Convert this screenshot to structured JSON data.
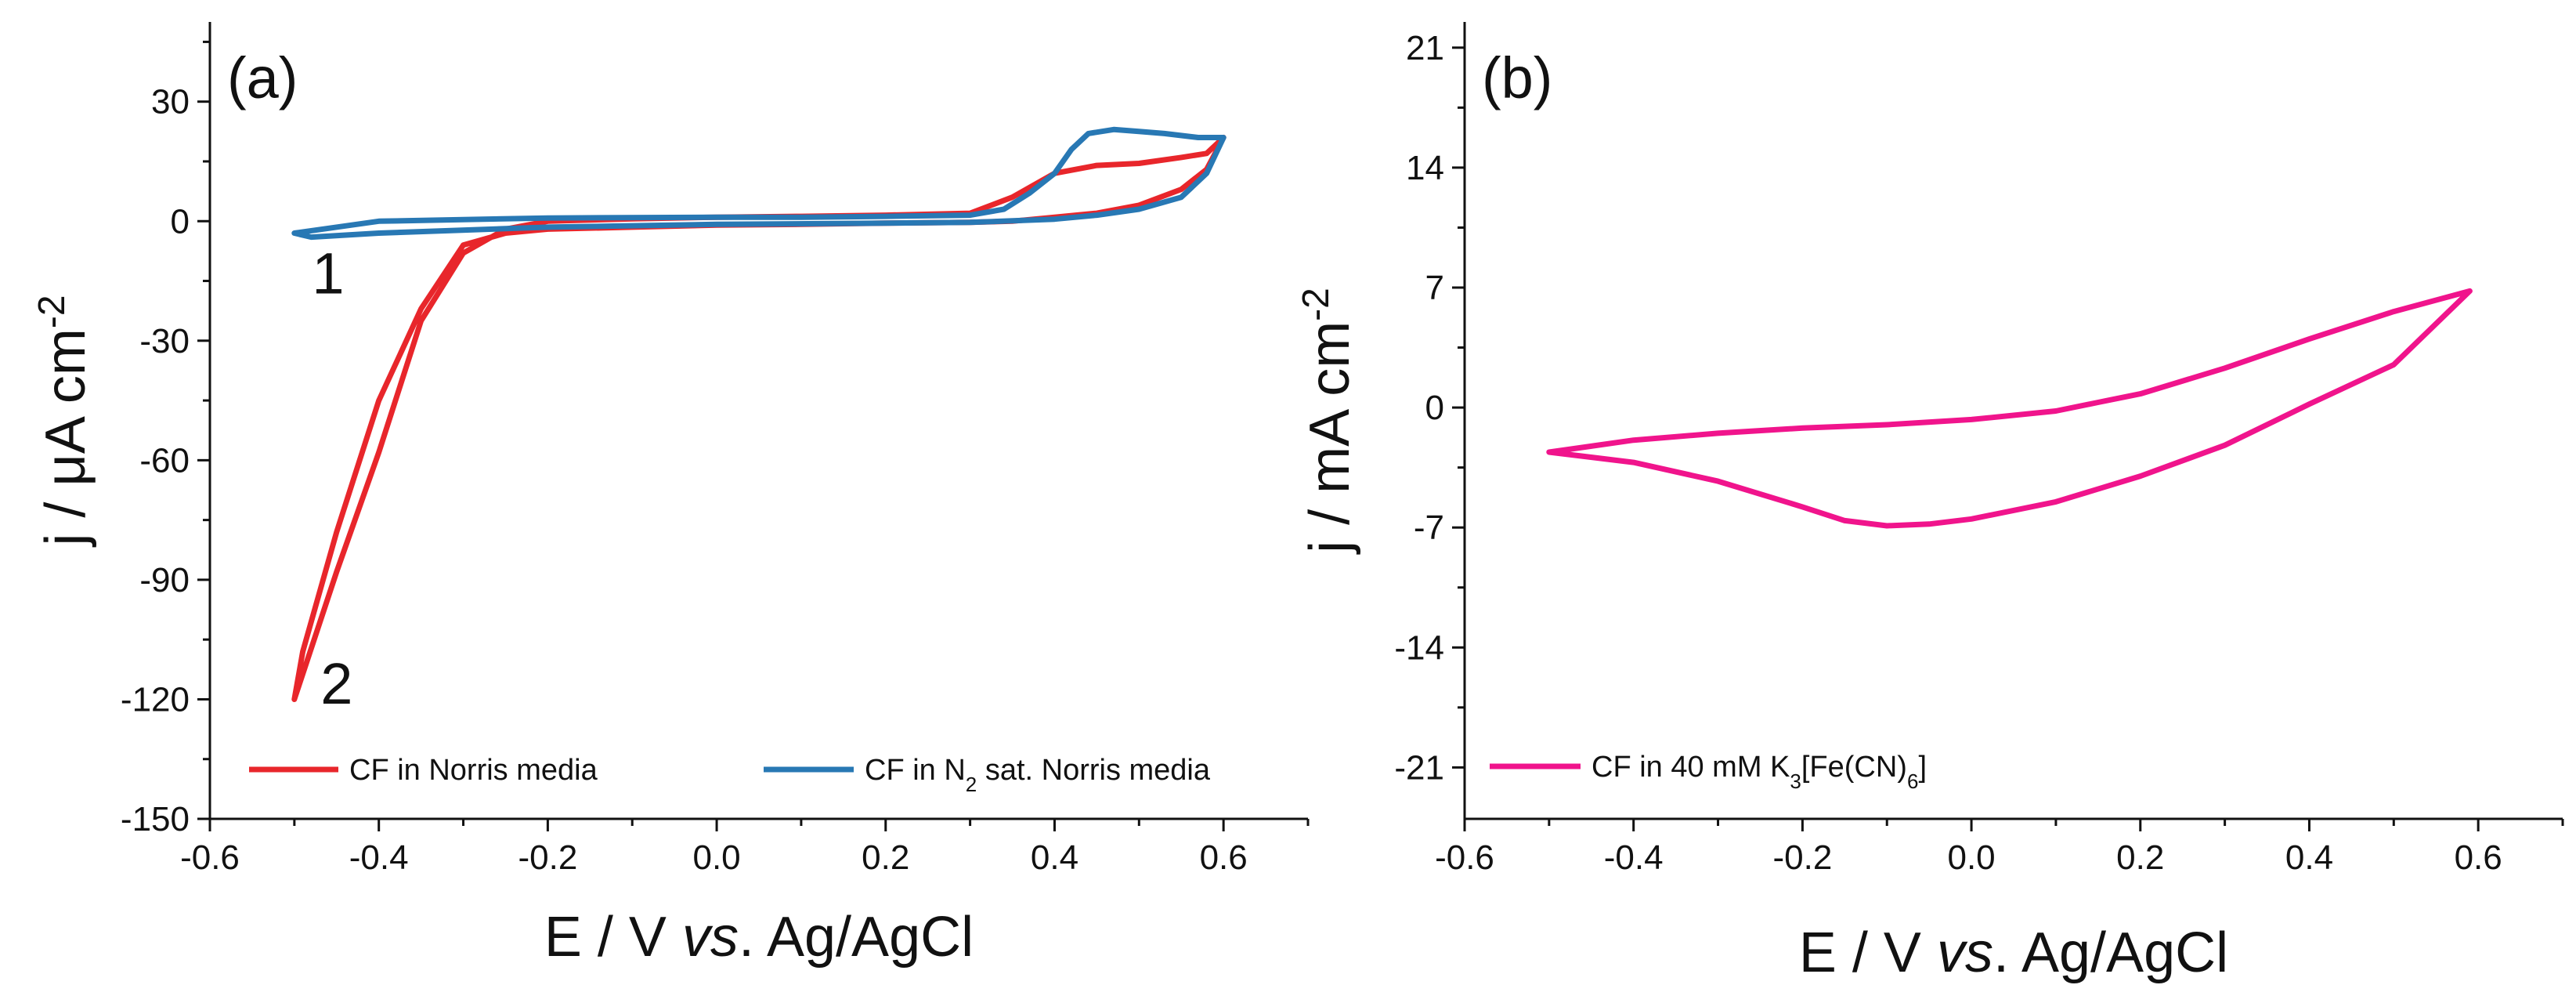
{
  "chart_data": [
    {
      "type": "line",
      "panel_label": "(a)",
      "xlabel": "E / V vs. Ag/AgCl",
      "xlabel_parts": {
        "pre": "E / V ",
        "italic": "vs",
        "post": ". Ag/AgCl"
      },
      "ylabel": "j / μA cm-2",
      "ylabel_parts": {
        "base": "j / μA cm",
        "sup": "-2"
      },
      "xlim": [
        -0.6,
        0.7
      ],
      "ylim": [
        -150,
        50
      ],
      "xticks": [
        -0.6,
        -0.4,
        -0.2,
        0.0,
        0.2,
        0.4,
        0.6
      ],
      "xtick_labels": [
        "-0.6",
        "-0.4",
        "-0.2",
        "0.0",
        "0.2",
        "0.4",
        "0.6"
      ],
      "yticks": [
        -150,
        -120,
        -90,
        -60,
        -30,
        0,
        30
      ],
      "ytick_labels": [
        "-150",
        "-120",
        "-90",
        "-60",
        "-30",
        "0",
        "30"
      ],
      "grid": false,
      "legend_position": "bottom",
      "annotations": [
        {
          "text": "1",
          "x": -0.46,
          "y": -13
        },
        {
          "text": "2",
          "x": -0.45,
          "y": -116
        }
      ],
      "series": [
        {
          "name": "CF in Norris media",
          "legend_parts": {
            "base": "CF in Norris media"
          },
          "color": "#e8262b",
          "x": [
            0.6,
            0.58,
            0.55,
            0.5,
            0.45,
            0.4,
            0.35,
            0.3,
            0.2,
            0.1,
            0.0,
            -0.1,
            -0.2,
            -0.25,
            -0.3,
            -0.35,
            -0.4,
            -0.45,
            -0.5,
            -0.49,
            -0.45,
            -0.4,
            -0.35,
            -0.3,
            -0.25,
            -0.2,
            -0.1,
            0.0,
            0.1,
            0.2,
            0.3,
            0.35,
            0.4,
            0.45,
            0.5,
            0.55,
            0.58,
            0.6
          ],
          "y": [
            21,
            17,
            16,
            14.5,
            14,
            12,
            6,
            2,
            1.5,
            1.2,
            1,
            0.6,
            0,
            -2,
            -8,
            -25,
            -58,
            -88,
            -120,
            -108,
            -78,
            -45,
            -22,
            -6,
            -3,
            -2,
            -1.5,
            -1,
            -0.8,
            -0.5,
            -0.3,
            0,
            1,
            2,
            4,
            8,
            13,
            21
          ]
        },
        {
          "name": "CF in N2 sat. Norris media",
          "legend_parts": {
            "base": "CF in N",
            "sub": "2",
            "post": " sat. Norris media"
          },
          "color": "#2878b4",
          "x": [
            0.6,
            0.57,
            0.53,
            0.5,
            0.47,
            0.44,
            0.42,
            0.4,
            0.37,
            0.34,
            0.3,
            0.2,
            0.1,
            0.0,
            -0.2,
            -0.4,
            -0.5,
            -0.48,
            -0.4,
            -0.2,
            0.0,
            0.2,
            0.3,
            0.4,
            0.45,
            0.5,
            0.55,
            0.58,
            0.6
          ],
          "y": [
            21,
            21,
            22,
            22.5,
            23,
            22,
            18,
            12,
            7,
            3,
            1.5,
            1.2,
            1,
            1,
            0.8,
            0,
            -3,
            -4,
            -3,
            -1.5,
            -0.8,
            -0.5,
            -0.3,
            0.5,
            1.5,
            3,
            6,
            12,
            21
          ]
        }
      ]
    },
    {
      "type": "line",
      "panel_label": "(b)",
      "xlabel": "E / V vs. Ag/AgCl",
      "xlabel_parts": {
        "pre": "E / V ",
        "italic": "vs",
        "post": ". Ag/AgCl"
      },
      "ylabel": "j / mA cm-2",
      "ylabel_parts": {
        "base": "j / mA cm",
        "sup": "-2"
      },
      "xlim": [
        -0.6,
        0.7
      ],
      "ylim": [
        -24,
        22.5
      ],
      "xticks": [
        -0.6,
        -0.4,
        -0.2,
        0.0,
        0.2,
        0.4,
        0.6
      ],
      "xtick_labels": [
        "-0.6",
        "-0.4",
        "-0.2",
        "0.0",
        "0.2",
        "0.4",
        "0.6"
      ],
      "yticks": [
        -21,
        -14,
        -7,
        0,
        7,
        14,
        21
      ],
      "ytick_labels": [
        "-21",
        "-14",
        "-7",
        "0",
        "7",
        "14",
        "21"
      ],
      "grid": false,
      "legend_position": "bottom-left",
      "series": [
        {
          "name": "CF in 40 mM K3[Fe(CN)6]",
          "legend_parts": {
            "base": "CF in 40 mM K",
            "sub": "3",
            "post": "[Fe(CN)",
            "sub2": "6",
            "post2": "]"
          },
          "color": "#f0148c",
          "x": [
            0.59,
            0.5,
            0.4,
            0.3,
            0.2,
            0.1,
            0.0,
            -0.05,
            -0.1,
            -0.15,
            -0.2,
            -0.3,
            -0.4,
            -0.5,
            -0.4,
            -0.3,
            -0.2,
            -0.1,
            0.0,
            0.1,
            0.15,
            0.2,
            0.3,
            0.4,
            0.5,
            0.59
          ],
          "y": [
            6.8,
            2.5,
            0.2,
            -2.2,
            -4.0,
            -5.5,
            -6.5,
            -6.8,
            -6.9,
            -6.6,
            -5.8,
            -4.3,
            -3.2,
            -2.6,
            -1.9,
            -1.5,
            -1.2,
            -1.0,
            -0.7,
            -0.2,
            0.3,
            0.8,
            2.3,
            4.0,
            5.6,
            6.8
          ]
        }
      ]
    }
  ]
}
